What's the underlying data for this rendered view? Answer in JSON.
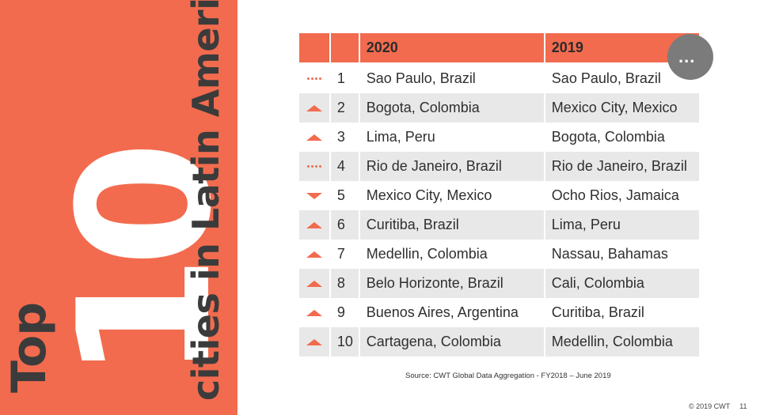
{
  "side_panel": {
    "top_word": "Top",
    "number": "10",
    "subtitle": "cities in Latin America"
  },
  "table": {
    "headers": {
      "icon": "",
      "rank": "",
      "year_a": "2020",
      "year_b": "2019"
    },
    "rows": [
      {
        "trend": "same",
        "rank": "1",
        "city_2020": "Sao Paulo, Brazil",
        "city_2019": "Sao Paulo, Brazil"
      },
      {
        "trend": "up",
        "rank": "2",
        "city_2020": "Bogota, Colombia",
        "city_2019": "Mexico City, Mexico"
      },
      {
        "trend": "up",
        "rank": "3",
        "city_2020": "Lima, Peru",
        "city_2019": "Bogota, Colombia"
      },
      {
        "trend": "same",
        "rank": "4",
        "city_2020": "Rio de Janeiro, Brazil",
        "city_2019": "Rio de Janeiro, Brazil"
      },
      {
        "trend": "down",
        "rank": "5",
        "city_2020": "Mexico City, Mexico",
        "city_2019": "Ocho Rios, Jamaica"
      },
      {
        "trend": "up",
        "rank": "6",
        "city_2020": "Curitiba, Brazil",
        "city_2019": "Lima, Peru"
      },
      {
        "trend": "up",
        "rank": "7",
        "city_2020": "Medellin, Colombia",
        "city_2019": "Nassau, Bahamas"
      },
      {
        "trend": "up",
        "rank": "8",
        "city_2020": "Belo Horizonte, Brazil",
        "city_2019": "Cali, Colombia"
      },
      {
        "trend": "up",
        "rank": "9",
        "city_2020": "Buenos Aires, Argentina",
        "city_2019": "Curitiba, Brazil"
      },
      {
        "trend": "up",
        "rank": "10",
        "city_2020": "Cartagena, Colombia",
        "city_2019": "Medellin, Colombia"
      }
    ]
  },
  "more_button": {
    "label": "..."
  },
  "source": "Source: CWT Global Data Aggregation - FY2018 – June 2019",
  "footer": {
    "copyright": "© 2019 CWT",
    "page": "11"
  },
  "colors": {
    "accent": "#f26b4e",
    "shade": "#e8e8e8",
    "text": "#2f2f2f"
  }
}
